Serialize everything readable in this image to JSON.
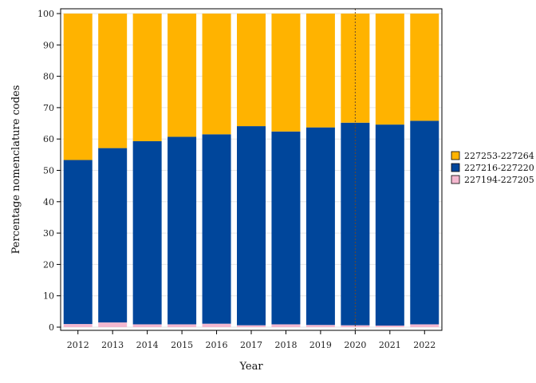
{
  "chart_data": {
    "type": "bar",
    "stacked": true,
    "xlabel": "Year",
    "ylabel": "Percentage nomenclature codes",
    "categories": [
      "2012",
      "2013",
      "2014",
      "2015",
      "2016",
      "2017",
      "2018",
      "2019",
      "2020",
      "2021",
      "2022"
    ],
    "ylim": [
      0,
      100
    ],
    "yticks": [
      0,
      10,
      20,
      30,
      40,
      50,
      60,
      70,
      80,
      90,
      100
    ],
    "series": [
      {
        "name": "227194-227205",
        "color": "#F4B8CF",
        "values": [
          1.0,
          1.5,
          0.9,
          0.9,
          1.1,
          0.6,
          0.9,
          0.7,
          0.6,
          0.5,
          0.9
        ]
      },
      {
        "name": "227216-227220",
        "color": "#00469B",
        "values": [
          52.3,
          55.6,
          58.4,
          59.8,
          60.4,
          63.5,
          61.5,
          63.0,
          64.6,
          64.1,
          64.9
        ]
      },
      {
        "name": "227253-227264",
        "color": "#FFB300",
        "values": [
          46.7,
          42.9,
          40.7,
          39.3,
          38.5,
          35.9,
          37.6,
          36.3,
          34.8,
          35.4,
          34.2
        ]
      }
    ],
    "legend_order": [
      "227253-227264",
      "227216-227220",
      "227194-227205"
    ],
    "legend_position": "right",
    "reference_line": {
      "x": "2020",
      "style": "dotted"
    }
  }
}
